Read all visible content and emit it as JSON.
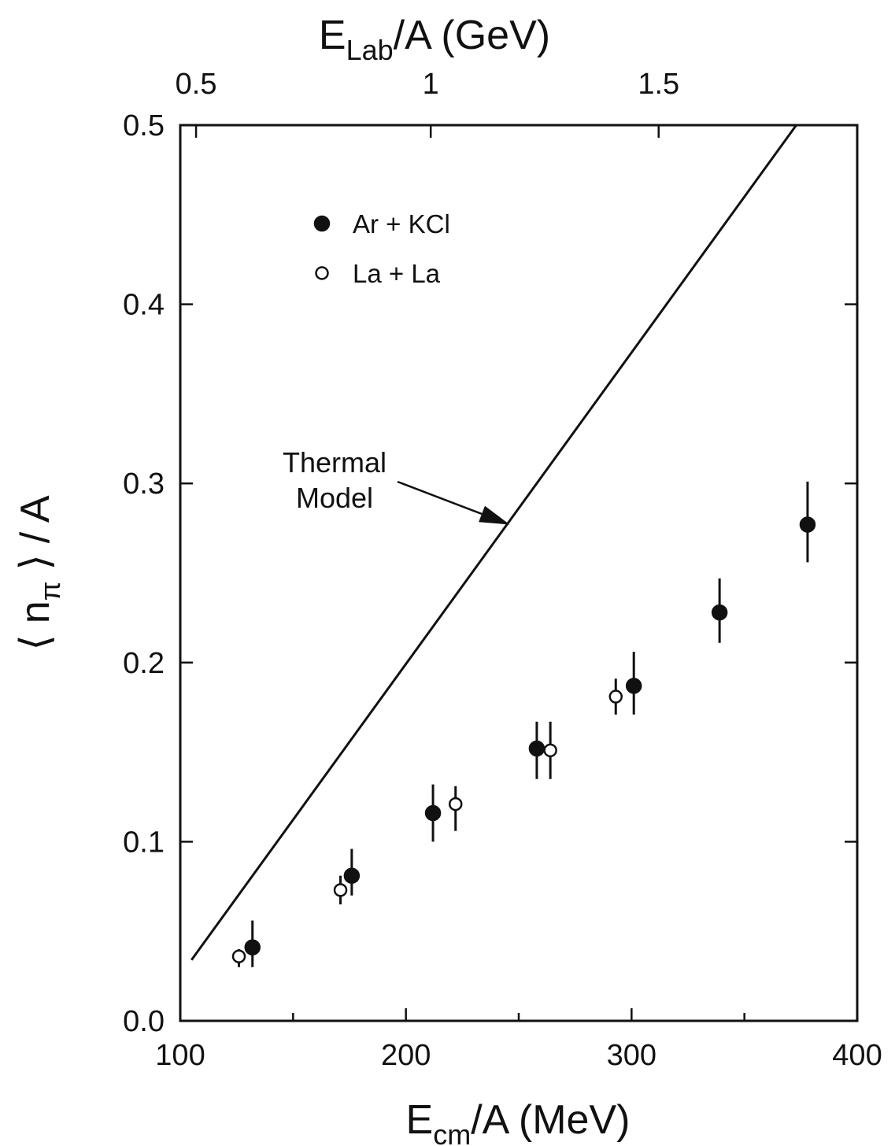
{
  "chart_data": {
    "type": "scatter",
    "x_axis": {
      "label_main": "E",
      "label_sub": "cm",
      "label_tail": "/A (MeV)",
      "range": [
        100,
        400
      ],
      "ticks": [
        100,
        200,
        300,
        400
      ],
      "tick_labels": [
        "100",
        "200",
        "300",
        "400"
      ]
    },
    "x2_axis": {
      "label_main": "E",
      "label_sub": "Lab",
      "label_tail": "/A (GeV)",
      "ticks": [
        0.5,
        1,
        1.5
      ],
      "tick_labels": [
        "0.5",
        "1",
        "1.5"
      ],
      "tick_positions_in_ecm": [
        107,
        211,
        312
      ]
    },
    "y_axis": {
      "label_open": "⟨",
      "label_n": "n",
      "label_sub": "π",
      "label_close": "⟩",
      "label_tail": "/ A",
      "range": [
        0.0,
        0.5
      ],
      "ticks": [
        0.0,
        0.1,
        0.2,
        0.3,
        0.4,
        0.5
      ],
      "tick_labels": [
        "0.0",
        "0.1",
        "0.2",
        "0.3",
        "0.4",
        "0.5"
      ]
    },
    "series": [
      {
        "name": "Ar + KCl",
        "marker": "filled-circle",
        "points": [
          {
            "x": 132,
            "y": 0.041,
            "yerr_low": 0.03,
            "yerr_high": 0.056
          },
          {
            "x": 176,
            "y": 0.081,
            "yerr_low": 0.07,
            "yerr_high": 0.096
          },
          {
            "x": 212,
            "y": 0.116,
            "yerr_low": 0.1,
            "yerr_high": 0.132
          },
          {
            "x": 258,
            "y": 0.152,
            "yerr_low": 0.135,
            "yerr_high": 0.167
          },
          {
            "x": 301,
            "y": 0.187,
            "yerr_low": 0.171,
            "yerr_high": 0.206
          },
          {
            "x": 339,
            "y": 0.228,
            "yerr_low": 0.211,
            "yerr_high": 0.247
          },
          {
            "x": 378,
            "y": 0.277,
            "yerr_low": 0.256,
            "yerr_high": 0.301
          }
        ]
      },
      {
        "name": "La + La",
        "marker": "open-circle",
        "points": [
          {
            "x": 126,
            "y": 0.036,
            "yerr_low": 0.03,
            "yerr_high": 0.04
          },
          {
            "x": 171,
            "y": 0.073,
            "yerr_low": 0.065,
            "yerr_high": 0.081
          },
          {
            "x": 222,
            "y": 0.121,
            "yerr_low": 0.106,
            "yerr_high": 0.131
          },
          {
            "x": 264,
            "y": 0.151,
            "yerr_low": 0.135,
            "yerr_high": 0.167
          },
          {
            "x": 293,
            "y": 0.181,
            "yerr_low": 0.171,
            "yerr_high": 0.191
          }
        ]
      }
    ],
    "model_line": {
      "label_line1": "Thermal",
      "label_line2": "Model",
      "points": [
        {
          "x": 105,
          "y": 0.034
        },
        {
          "x": 373,
          "y": 0.5
        }
      ],
      "arrow_target": {
        "x": 246,
        "y": 0.277
      }
    },
    "legend_placement": "top-left",
    "grid": false
  }
}
